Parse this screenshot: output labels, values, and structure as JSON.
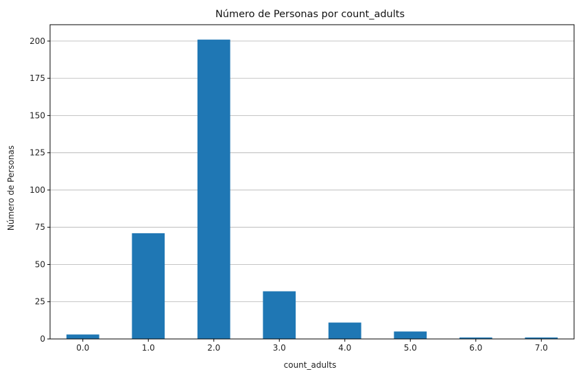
{
  "chart_data": {
    "type": "bar",
    "title": "Número de Personas por count_adults",
    "xlabel": "count_adults",
    "ylabel": "Número de Personas",
    "categories": [
      "0.0",
      "1.0",
      "2.0",
      "3.0",
      "4.0",
      "5.0",
      "6.0",
      "7.0"
    ],
    "values": [
      3,
      71,
      201,
      32,
      11,
      5,
      1,
      1
    ],
    "ylim": [
      0,
      211
    ],
    "yticks": [
      0,
      25,
      50,
      75,
      100,
      125,
      150,
      175,
      200
    ],
    "grid": "y",
    "bar_color": "#1f77b4",
    "legend": "none"
  }
}
